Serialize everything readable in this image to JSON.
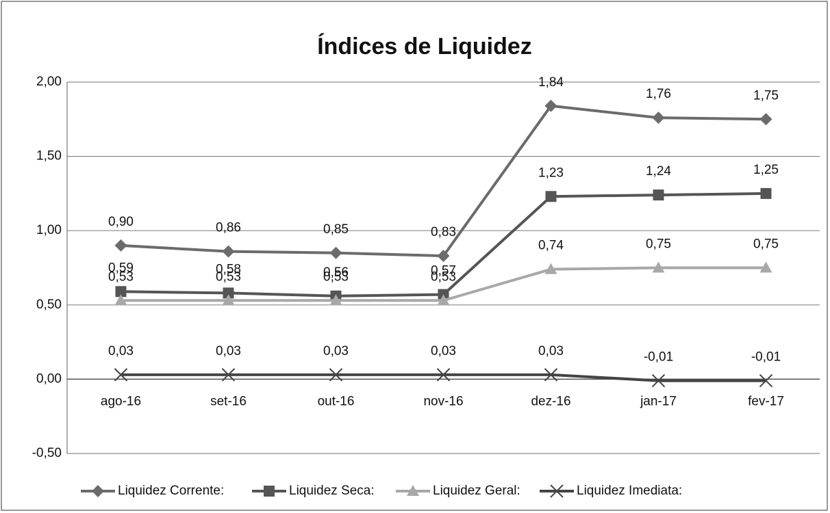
{
  "chart_data": {
    "type": "line",
    "title": "Índices de Liquidez",
    "categories": [
      "ago-16",
      "set-16",
      "out-16",
      "nov-16",
      "dez-16",
      "jan-17",
      "fev-17"
    ],
    "series": [
      {
        "name": "Liquidez Corrente:",
        "color": "#6b6b6b",
        "marker": "diamond",
        "values": [
          0.9,
          0.86,
          0.85,
          0.83,
          1.84,
          1.76,
          1.75
        ],
        "value_labels": [
          "0,90",
          "0,86",
          "0,85",
          "0,83",
          "1,84",
          "1,76",
          "1,75"
        ]
      },
      {
        "name": "Liquidez Seca:",
        "color": "#555555",
        "marker": "square",
        "values": [
          0.59,
          0.58,
          0.56,
          0.57,
          1.23,
          1.24,
          1.25
        ],
        "value_labels": [
          "0,59",
          "0,58",
          "0,56",
          "0,57",
          "1,23",
          "1,24",
          "1,25"
        ]
      },
      {
        "name": "Liquidez Geral:",
        "color": "#a8a8a8",
        "marker": "triangle",
        "values": [
          0.53,
          0.53,
          0.53,
          0.53,
          0.74,
          0.75,
          0.75
        ],
        "value_labels": [
          "0,53",
          "0,53",
          "0,53",
          "0,53",
          "0,74",
          "0,75",
          "0,75"
        ]
      },
      {
        "name": "Liquidez Imediata:",
        "color": "#444444",
        "marker": "x",
        "values": [
          0.03,
          0.03,
          0.03,
          0.03,
          0.03,
          -0.01,
          -0.01
        ],
        "value_labels": [
          "0,03",
          "0,03",
          "0,03",
          "0,03",
          "0,03",
          "-0,01",
          "-0,01"
        ]
      }
    ],
    "ylim": [
      -0.5,
      2.0
    ],
    "yticks": [
      {
        "value": -0.5,
        "label": "-0,50"
      },
      {
        "value": 0,
        "label": "0,00"
      },
      {
        "value": 0.5,
        "label": "0,50"
      },
      {
        "value": 1.0,
        "label": "1,00"
      },
      {
        "value": 1.5,
        "label": "1,50"
      },
      {
        "value": 2.0,
        "label": "2,00"
      }
    ],
    "grid": true,
    "legend": "bottom"
  }
}
